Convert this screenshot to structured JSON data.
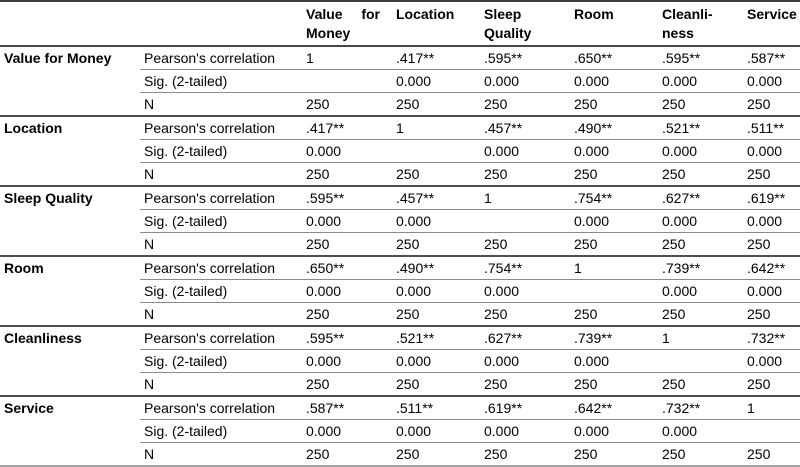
{
  "colors": {
    "text": "#000000",
    "border_dark": "#4f4f4f",
    "border_inner": "#8a8a8a",
    "border_bottom": "#a6a6a6",
    "background": "#ffffff"
  },
  "table": {
    "headers": [
      [
        "Value for",
        "Money"
      ],
      [
        "Location",
        ""
      ],
      [
        "Sleep",
        "Quality"
      ],
      [
        "Room",
        ""
      ],
      [
        "Cleanli-",
        "ness"
      ],
      [
        "Service",
        ""
      ]
    ],
    "stat_labels": [
      "Pearson's correlation",
      "Sig. (2-tailed)",
      "N"
    ],
    "groups": [
      {
        "label": "Value for Money",
        "rows": [
          {
            "stat": "Pearson's correlation",
            "values": [
              "1",
              ".417**",
              ".595**",
              ".650**",
              ".595**",
              ".587**"
            ]
          },
          {
            "stat": "Sig. (2-tailed)",
            "values": [
              "",
              "0.000",
              "0.000",
              "0.000",
              "0.000",
              "0.000"
            ]
          },
          {
            "stat": "N",
            "values": [
              "250",
              "250",
              "250",
              "250",
              "250",
              "250"
            ]
          }
        ]
      },
      {
        "label": "Location",
        "rows": [
          {
            "stat": "Pearson's correlation",
            "values": [
              ".417**",
              "1",
              ".457**",
              ".490**",
              ".521**",
              ".511**"
            ]
          },
          {
            "stat": "Sig. (2-tailed)",
            "values": [
              "0.000",
              "",
              "0.000",
              "0.000",
              "0.000",
              "0.000"
            ]
          },
          {
            "stat": "N",
            "values": [
              "250",
              "250",
              "250",
              "250",
              "250",
              "250"
            ]
          }
        ]
      },
      {
        "label": "Sleep Quality",
        "rows": [
          {
            "stat": "Pearson's correlation",
            "values": [
              ".595**",
              ".457**",
              "1",
              ".754**",
              ".627**",
              ".619**"
            ]
          },
          {
            "stat": "Sig. (2-tailed)",
            "values": [
              "0.000",
              "0.000",
              "",
              "0.000",
              "0.000",
              "0.000"
            ]
          },
          {
            "stat": "N",
            "values": [
              "250",
              "250",
              "250",
              "250",
              "250",
              "250"
            ]
          }
        ]
      },
      {
        "label": "Room",
        "rows": [
          {
            "stat": "Pearson's correlation",
            "values": [
              ".650**",
              ".490**",
              ".754**",
              "1",
              ".739**",
              ".642**"
            ]
          },
          {
            "stat": "Sig. (2-tailed)",
            "values": [
              "0.000",
              "0.000",
              "0.000",
              "",
              "0.000",
              "0.000"
            ]
          },
          {
            "stat": "N",
            "values": [
              "250",
              "250",
              "250",
              "250",
              "250",
              "250"
            ]
          }
        ]
      },
      {
        "label": "Cleanliness",
        "rows": [
          {
            "stat": "Pearson's correlation",
            "values": [
              ".595**",
              ".521**",
              ".627**",
              ".739**",
              "1",
              ".732**"
            ]
          },
          {
            "stat": "Sig. (2-tailed)",
            "values": [
              "0.000",
              "0.000",
              "0.000",
              "0.000",
              "",
              "0.000"
            ]
          },
          {
            "stat": "N",
            "values": [
              "250",
              "250",
              "250",
              "250",
              "250",
              "250"
            ]
          }
        ]
      },
      {
        "label": "Service",
        "rows": [
          {
            "stat": "Pearson's correlation",
            "values": [
              ".587**",
              ".511**",
              ".619**",
              ".642**",
              ".732**",
              "1"
            ]
          },
          {
            "stat": "Sig. (2-tailed)",
            "values": [
              "0.000",
              "0.000",
              "0.000",
              "0.000",
              "0.000",
              ""
            ]
          },
          {
            "stat": "N",
            "values": [
              "250",
              "250",
              "250",
              "250",
              "250",
              "250"
            ]
          }
        ]
      }
    ]
  }
}
